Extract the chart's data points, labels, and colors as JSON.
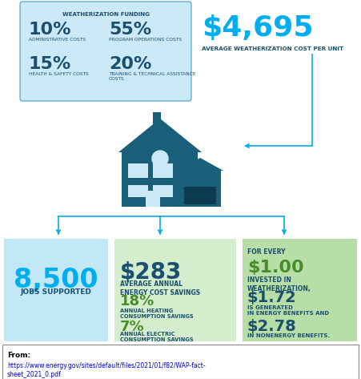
{
  "title_box": {
    "header": "WEATHERIZATION FUNDING",
    "items": [
      {
        "pct": "10%",
        "label": "ADMINISTRATIVE COSTS"
      },
      {
        "pct": "55%",
        "label": "PROGRAM OPERATIONS COSTS"
      },
      {
        "pct": "15%",
        "label": "HEALTH & SAFETY COSTS"
      },
      {
        "pct": "20%",
        "label": "TRAINING & TECHNICAL ASSISTANCE\nCOSTS"
      }
    ],
    "bg_color": "#cce9f7",
    "border_color": "#4a9cc5",
    "pct_color": "#1a4f6e",
    "label_color": "#1a4f6e"
  },
  "cost_display": {
    "value": "$4,695",
    "label": "AVERAGE WEATHERIZATION COST PER UNIT",
    "value_color": "#00aeef",
    "label_color": "#1a4f6e"
  },
  "house_color": "#1a5f7a",
  "win_color": "#cce9f7",
  "garage_dark": "#0d3b52",
  "arrow_color": "#00aeef",
  "bottom_boxes": [
    {
      "main_value": "8,500",
      "main_label": "JOBS SUPPORTED",
      "extra": [],
      "bg_color": "#c2e8f8",
      "main_value_color": "#00aeef",
      "main_label_color": "#1a4f6e"
    },
    {
      "main_value": "$283",
      "main_label": "AVERAGE ANNUAL\nENERGY COST SAVINGS",
      "extra": [
        {
          "value": "18%",
          "label": "ANNUAL HEATING\nCONSUMPTION SAVINGS"
        },
        {
          "value": "7%",
          "label": "ANNUAL ELECTRIC\nCONSUMPTION SAVINGS"
        }
      ],
      "bg_color": "#d4edcc",
      "main_value_color": "#1a4f6e",
      "main_label_color": "#1a4f6e",
      "extra_value_color": "#4a8c2a",
      "extra_label_color": "#1a4f6e"
    },
    {
      "main_value": "$1.00",
      "main_label": "INVESTED IN\nWEATHERIZATION,",
      "prefix": "FOR EVERY",
      "extra": [
        {
          "value": "$1.72",
          "label": "IS GENERATED\nIN ENERGY BENEFITS AND"
        },
        {
          "value": "$2.78",
          "label": "IN NONENERGY BENEFITS."
        }
      ],
      "bg_color": "#b8dea8",
      "main_value_color": "#4a8c2a",
      "main_label_color": "#1a4f6e",
      "extra_value_color": "#1a4f6e",
      "extra_label_color": "#1a4f6e"
    }
  ],
  "footer_bold": "From:",
  "footer_link": "https://www.energy.gov/sites/default/files/2021/01/f82/WAP-fact-\nsheet_2021_0.pdf",
  "footer_link_color": "#0000cc",
  "bg_color": "#ffffff"
}
